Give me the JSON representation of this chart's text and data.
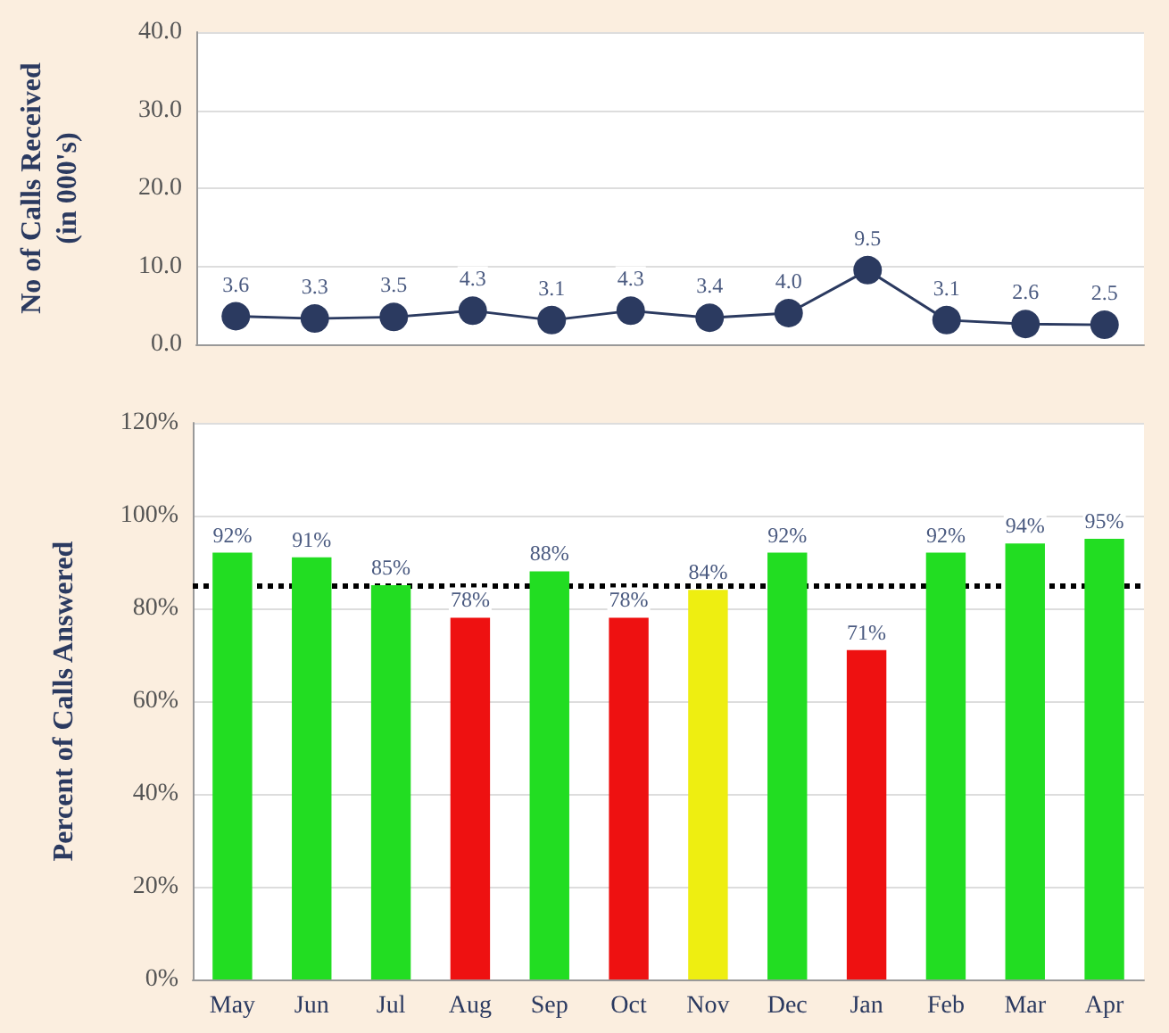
{
  "chart_data": [
    {
      "type": "line",
      "ylabel": "No of Calls Received\n(in 000's)",
      "categories": [
        null,
        null,
        null,
        null,
        null,
        null,
        null,
        null,
        null,
        null,
        null,
        null
      ],
      "series": [
        {
          "color": "#2b3a60",
          "values": [
            3.6,
            3.3,
            3.5,
            4.3,
            3.1,
            4.3,
            3.4,
            4.0,
            9.5,
            3.1,
            2.6,
            2.5
          ],
          "value_labels": [
            "3.6",
            "3.3",
            "3.5",
            "4.3",
            "3.1",
            "4.3",
            "3.4",
            "4.0",
            "9.5",
            "3.1",
            "2.6",
            "2.5"
          ]
        }
      ],
      "ylim": [
        0,
        40
      ],
      "yticks": [
        {
          "value": 0,
          "label": "0.0"
        },
        {
          "value": 10,
          "label": "10.0"
        },
        {
          "value": 20,
          "label": "20.0"
        },
        {
          "value": 30,
          "label": "30.0"
        },
        {
          "value": 40,
          "label": "40.0"
        }
      ],
      "grid": "y",
      "marker": "circle",
      "tick_labels": "y"
    },
    {
      "type": "bar",
      "ylabel": "Percent of Calls Answered",
      "categories": [
        "May",
        "Jun",
        "Jul",
        "Aug",
        "Sep",
        "Oct",
        "Nov",
        "Dec",
        "Jan",
        "Feb",
        "Mar",
        "Apr"
      ],
      "values": [
        92,
        91,
        85,
        78,
        88,
        78,
        84,
        92,
        71,
        92,
        94,
        95
      ],
      "colors": [
        "#22dd22",
        "#22dd22",
        "#22dd22",
        "#ee1111",
        "#22dd22",
        "#ee1111",
        "#eeee11",
        "#22dd22",
        "#ee1111",
        "#22dd22",
        "#22dd22",
        "#22dd22"
      ],
      "value_labels": [
        "92%",
        "91%",
        "85%",
        "78%",
        "88%",
        "78%",
        "84%",
        "92%",
        "71%",
        "92%",
        "94%",
        "95%"
      ],
      "ylim": [
        0,
        120
      ],
      "yticks": [
        {
          "value": 0,
          "label": "0%"
        },
        {
          "value": 20,
          "label": "20%"
        },
        {
          "value": 40,
          "label": "40%"
        },
        {
          "value": 60,
          "label": "60%"
        },
        {
          "value": 80,
          "label": "80%"
        },
        {
          "value": 100,
          "label": "100%"
        },
        {
          "value": 120,
          "label": "120%"
        }
      ],
      "grid": "y",
      "ref_lines": [
        {
          "axis": "y",
          "value": 85,
          "color": "#000000",
          "line_style": "dotted"
        }
      ]
    }
  ]
}
